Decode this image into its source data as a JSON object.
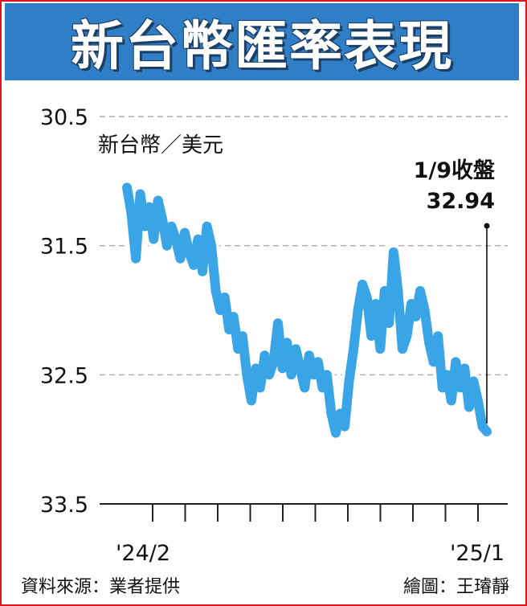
{
  "title": "新台幣匯率表現",
  "source": "資料來源：業者提供",
  "credit": "繪圖：王璿靜",
  "colors": {
    "line": "#3aa5e6",
    "banner": "#2f7ec6",
    "border": "#e0141e"
  },
  "chart_data": {
    "type": "line",
    "ylabel": "新台幣／美元",
    "y_inverted": true,
    "ylim": [
      30.5,
      33.5
    ],
    "y_ticks": [
      "30.5",
      "31.5",
      "32.5",
      "33.5"
    ],
    "x_ticks": [
      "'24/2",
      "'25/1"
    ],
    "grid": "horizontal dashed",
    "annotation": {
      "label": "1/9收盤",
      "value": "32.94"
    },
    "series": [
      {
        "values": [
          31.05,
          31.25,
          31.6,
          31.1,
          31.35,
          31.2,
          31.45,
          31.15,
          31.3,
          31.5,
          31.35,
          31.45,
          31.6,
          31.4,
          31.55,
          31.65,
          31.45,
          31.7,
          31.35,
          31.5,
          31.85,
          32.0,
          31.9,
          32.15,
          32.05,
          32.3,
          32.2,
          32.5,
          32.7,
          32.45,
          32.6,
          32.35,
          32.5,
          32.4,
          32.1,
          32.45,
          32.25,
          32.5,
          32.3,
          32.45,
          32.6,
          32.35,
          32.5,
          32.4,
          32.6,
          32.5,
          32.8,
          32.95,
          32.8,
          32.9,
          32.55,
          32.3,
          32.0,
          31.8,
          31.9,
          32.2,
          31.95,
          32.3,
          31.85,
          32.1,
          31.55,
          31.85,
          32.3,
          32.2,
          31.95,
          32.05,
          31.85,
          32.0,
          32.25,
          32.4,
          32.2,
          32.6,
          32.5,
          32.7,
          32.4,
          32.6,
          32.45,
          32.75,
          32.55,
          32.7,
          32.9,
          32.94
        ]
      }
    ]
  }
}
